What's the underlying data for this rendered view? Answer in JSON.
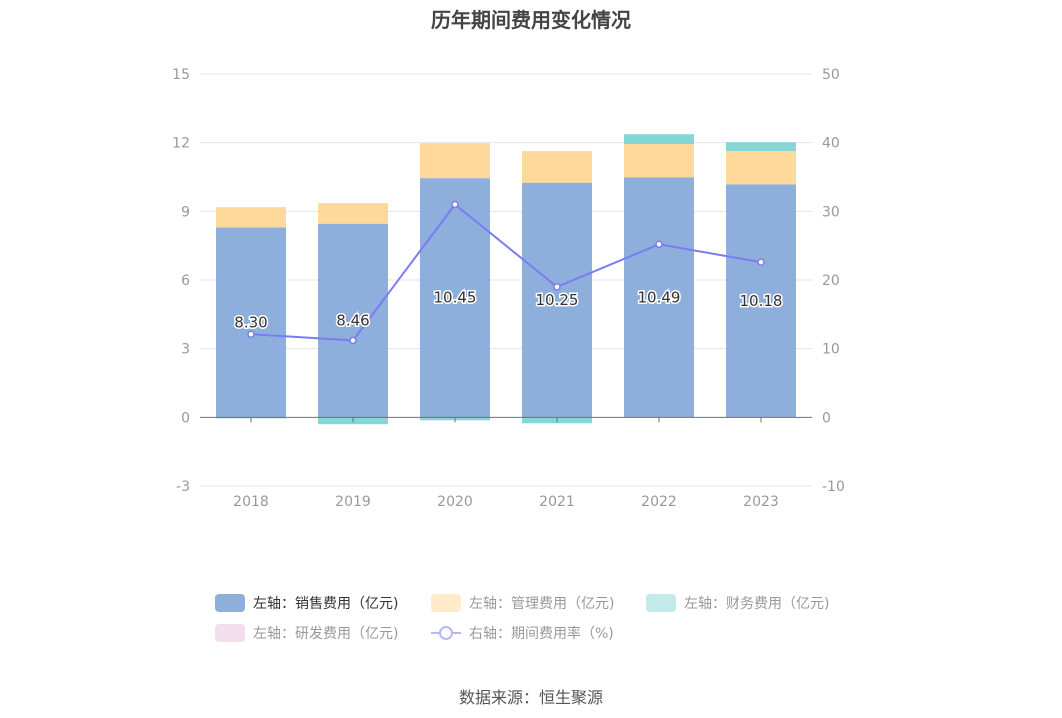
{
  "title": "历年期间费用变化情况",
  "source": "数据来源：恒生聚源",
  "chart_data": {
    "type": "bar",
    "stacked": true,
    "categories": [
      "2018",
      "2019",
      "2020",
      "2021",
      "2022",
      "2023"
    ],
    "left_axis": {
      "ylim": [
        -3,
        15
      ],
      "ticks": [
        "-3",
        "0",
        "3",
        "6",
        "9",
        "12",
        "15"
      ]
    },
    "right_axis": {
      "ylim": [
        -10,
        50
      ],
      "ticks": [
        "-10",
        "0",
        "10",
        "20",
        "30",
        "40",
        "50"
      ]
    },
    "grid": true,
    "legend_position": "bottom",
    "series": [
      {
        "name": "左轴：销售费用（亿元)",
        "type": "bar",
        "axis": "left",
        "color": "#8eaedb",
        "values": [
          8.3,
          8.46,
          10.45,
          10.25,
          10.49,
          10.18
        ],
        "labels": [
          "8.30",
          "8.46",
          "10.45",
          "10.25",
          "10.49",
          "10.18"
        ]
      },
      {
        "name": "左轴：管理费用（亿元)",
        "type": "bar",
        "axis": "left",
        "color": "#ffd999",
        "values": [
          0.88,
          0.9,
          1.53,
          1.38,
          1.45,
          1.45
        ]
      },
      {
        "name": "左轴：财务费用（亿元)",
        "type": "bar",
        "axis": "left",
        "color": "#86d6d8",
        "values": [
          -0.02,
          -0.3,
          -0.13,
          -0.26,
          0.43,
          0.39
        ]
      },
      {
        "name": "左轴：研发费用（亿元)",
        "type": "bar",
        "axis": "left",
        "color": "#f0dcea",
        "values": [
          0,
          0,
          0,
          0,
          0,
          0
        ]
      },
      {
        "name": "右轴：期间费用率（%)",
        "type": "line",
        "axis": "right",
        "color": "#7b7cf3",
        "values": [
          12.1,
          11.2,
          31.0,
          19.0,
          25.2,
          22.6
        ]
      }
    ]
  }
}
